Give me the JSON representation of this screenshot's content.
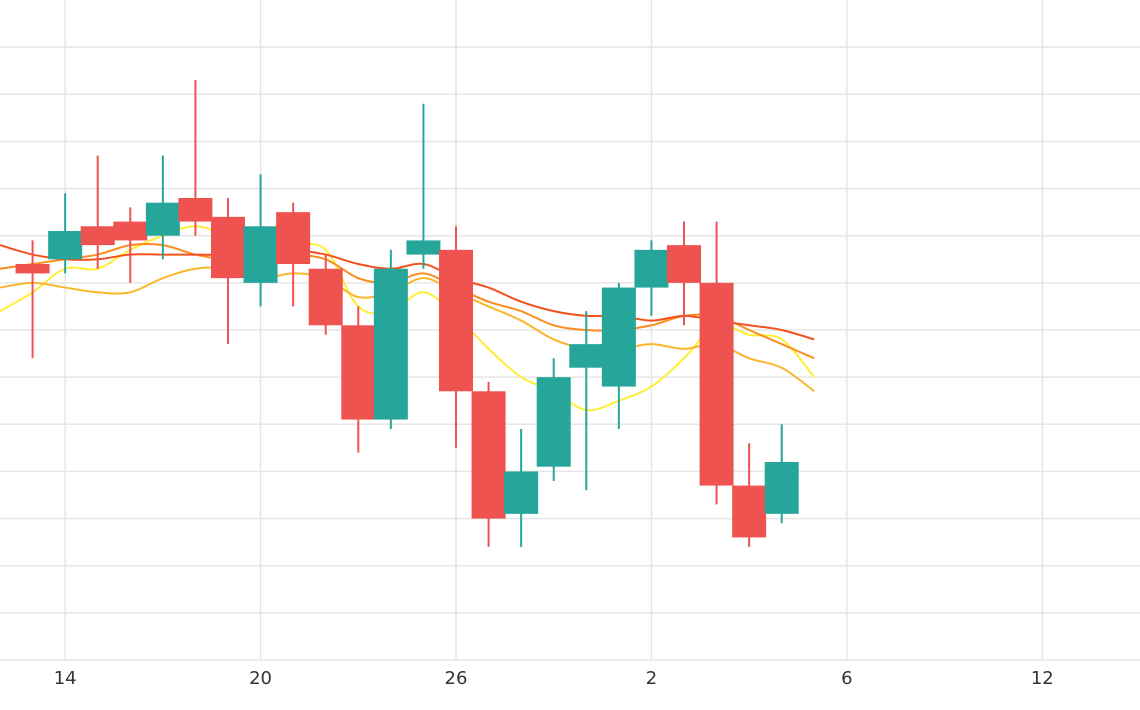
{
  "chart_data": {
    "type": "candlestick",
    "title": "",
    "xlabel": "",
    "ylabel": "",
    "x_tick_labels": [
      {
        "x": 1,
        "label": "14"
      },
      {
        "x": 7,
        "label": "20"
      },
      {
        "x": 13,
        "label": "26"
      },
      {
        "x": 19,
        "label": "2"
      },
      {
        "x": 25,
        "label": "6"
      },
      {
        "x": 31,
        "label": "12"
      }
    ],
    "xlim": [
      -1,
      34
    ],
    "ylim": [
      0,
      14
    ],
    "y_grid_values": [
      1,
      2,
      3,
      4,
      5,
      6,
      7,
      8,
      9,
      10,
      11,
      12,
      13
    ],
    "grid": true,
    "up_color": "#26a69a",
    "down_color": "#ef5350",
    "candles": [
      {
        "x": 0,
        "open": 8.4,
        "high": 8.9,
        "low": 6.4,
        "close": 8.2
      },
      {
        "x": 1,
        "open": 8.5,
        "high": 9.9,
        "low": 8.2,
        "close": 9.1
      },
      {
        "x": 2,
        "open": 9.2,
        "high": 10.7,
        "low": 8.3,
        "close": 8.8
      },
      {
        "x": 3,
        "open": 9.3,
        "high": 9.6,
        "low": 8.0,
        "close": 8.9
      },
      {
        "x": 4,
        "open": 9.0,
        "high": 10.7,
        "low": 8.5,
        "close": 9.7
      },
      {
        "x": 5,
        "open": 9.8,
        "high": 12.3,
        "low": 9.0,
        "close": 9.3
      },
      {
        "x": 6,
        "open": 9.4,
        "high": 9.8,
        "low": 6.7,
        "close": 8.1
      },
      {
        "x": 7,
        "open": 8.0,
        "high": 10.3,
        "low": 7.5,
        "close": 9.2
      },
      {
        "x": 8,
        "open": 9.5,
        "high": 9.7,
        "low": 7.5,
        "close": 8.4
      },
      {
        "x": 9,
        "open": 8.3,
        "high": 8.6,
        "low": 6.9,
        "close": 7.1
      },
      {
        "x": 10,
        "open": 7.1,
        "high": 7.5,
        "low": 4.4,
        "close": 5.1
      },
      {
        "x": 11,
        "open": 5.1,
        "high": 8.7,
        "low": 4.9,
        "close": 8.3
      },
      {
        "x": 12,
        "open": 8.6,
        "high": 11.8,
        "low": 8.3,
        "close": 8.9
      },
      {
        "x": 13,
        "open": 8.7,
        "high": 9.2,
        "low": 4.5,
        "close": 5.7
      },
      {
        "x": 14,
        "open": 5.7,
        "high": 5.9,
        "low": 2.4,
        "close": 3.0
      },
      {
        "x": 15,
        "open": 3.1,
        "high": 4.9,
        "low": 2.4,
        "close": 4.0
      },
      {
        "x": 16,
        "open": 4.1,
        "high": 6.4,
        "low": 3.8,
        "close": 6.0
      },
      {
        "x": 17,
        "open": 6.2,
        "high": 7.4,
        "low": 3.6,
        "close": 6.7
      },
      {
        "x": 18,
        "open": 5.8,
        "high": 8.0,
        "low": 4.9,
        "close": 7.9
      },
      {
        "x": 19,
        "open": 7.9,
        "high": 8.9,
        "low": 7.3,
        "close": 8.7
      },
      {
        "x": 20,
        "open": 8.8,
        "high": 9.3,
        "low": 7.1,
        "close": 8.0
      },
      {
        "x": 21,
        "open": 8.0,
        "high": 9.3,
        "low": 3.3,
        "close": 3.7
      },
      {
        "x": 22,
        "open": 3.7,
        "high": 4.6,
        "low": 2.4,
        "close": 2.6
      },
      {
        "x": 23,
        "open": 3.1,
        "high": 5.0,
        "low": 2.9,
        "close": 4.2
      }
    ],
    "moving_averages": [
      {
        "color": "#ffee33",
        "points": [
          [
            -1,
            7.4
          ],
          [
            0,
            7.8
          ],
          [
            1,
            8.3
          ],
          [
            2,
            8.3
          ],
          [
            3,
            8.7
          ],
          [
            4,
            9.0
          ],
          [
            5,
            9.2
          ],
          [
            6,
            9.0
          ],
          [
            7,
            8.8
          ],
          [
            8,
            8.8
          ],
          [
            9,
            8.7
          ],
          [
            10,
            7.5
          ],
          [
            11,
            7.4
          ],
          [
            12,
            7.8
          ],
          [
            13,
            7.3
          ],
          [
            14,
            6.6
          ],
          [
            15,
            6.0
          ],
          [
            16,
            5.7
          ],
          [
            17,
            5.3
          ],
          [
            18,
            5.5
          ],
          [
            19,
            5.8
          ],
          [
            20,
            6.4
          ],
          [
            21,
            7.1
          ],
          [
            22,
            6.9
          ],
          [
            23,
            6.8
          ],
          [
            24,
            6.0
          ]
        ]
      },
      {
        "color": "#fbb72c",
        "points": [
          [
            -1,
            7.9
          ],
          [
            0,
            8.0
          ],
          [
            1,
            7.9
          ],
          [
            2,
            7.8
          ],
          [
            3,
            7.8
          ],
          [
            4,
            8.1
          ],
          [
            5,
            8.3
          ],
          [
            6,
            8.3
          ],
          [
            7,
            8.1
          ],
          [
            8,
            8.2
          ],
          [
            9,
            8.1
          ],
          [
            10,
            7.7
          ],
          [
            11,
            7.8
          ],
          [
            12,
            8.1
          ],
          [
            13,
            7.8
          ],
          [
            14,
            7.5
          ],
          [
            15,
            7.2
          ],
          [
            16,
            6.8
          ],
          [
            17,
            6.6
          ],
          [
            18,
            6.6
          ],
          [
            19,
            6.7
          ],
          [
            20,
            6.6
          ],
          [
            21,
            6.7
          ],
          [
            22,
            6.4
          ],
          [
            23,
            6.2
          ],
          [
            24,
            5.7
          ]
        ]
      },
      {
        "color": "#fb8c1e",
        "points": [
          [
            -1,
            8.3
          ],
          [
            0,
            8.4
          ],
          [
            1,
            8.5
          ],
          [
            2,
            8.6
          ],
          [
            3,
            8.8
          ],
          [
            4,
            8.8
          ],
          [
            5,
            8.6
          ],
          [
            6,
            8.5
          ],
          [
            7,
            8.6
          ],
          [
            8,
            8.6
          ],
          [
            9,
            8.5
          ],
          [
            10,
            8.1
          ],
          [
            11,
            8.0
          ],
          [
            12,
            8.2
          ],
          [
            13,
            7.9
          ],
          [
            14,
            7.6
          ],
          [
            15,
            7.4
          ],
          [
            16,
            7.1
          ],
          [
            17,
            7.0
          ],
          [
            18,
            7.0
          ],
          [
            19,
            7.1
          ],
          [
            20,
            7.3
          ],
          [
            21,
            7.3
          ],
          [
            22,
            7.0
          ],
          [
            23,
            6.7
          ],
          [
            24,
            6.4
          ]
        ]
      },
      {
        "color": "#f4511e",
        "points": [
          [
            -1,
            8.8
          ],
          [
            0,
            8.6
          ],
          [
            1,
            8.5
          ],
          [
            2,
            8.5
          ],
          [
            3,
            8.6
          ],
          [
            4,
            8.6
          ],
          [
            5,
            8.6
          ],
          [
            6,
            8.6
          ],
          [
            7,
            8.7
          ],
          [
            8,
            8.7
          ],
          [
            9,
            8.6
          ],
          [
            10,
            8.4
          ],
          [
            11,
            8.3
          ],
          [
            12,
            8.4
          ],
          [
            13,
            8.1
          ],
          [
            14,
            7.9
          ],
          [
            15,
            7.6
          ],
          [
            16,
            7.4
          ],
          [
            17,
            7.3
          ],
          [
            18,
            7.3
          ],
          [
            19,
            7.2
          ],
          [
            20,
            7.3
          ],
          [
            21,
            7.2
          ],
          [
            22,
            7.1
          ],
          [
            23,
            7.0
          ],
          [
            24,
            6.8
          ]
        ]
      }
    ]
  }
}
